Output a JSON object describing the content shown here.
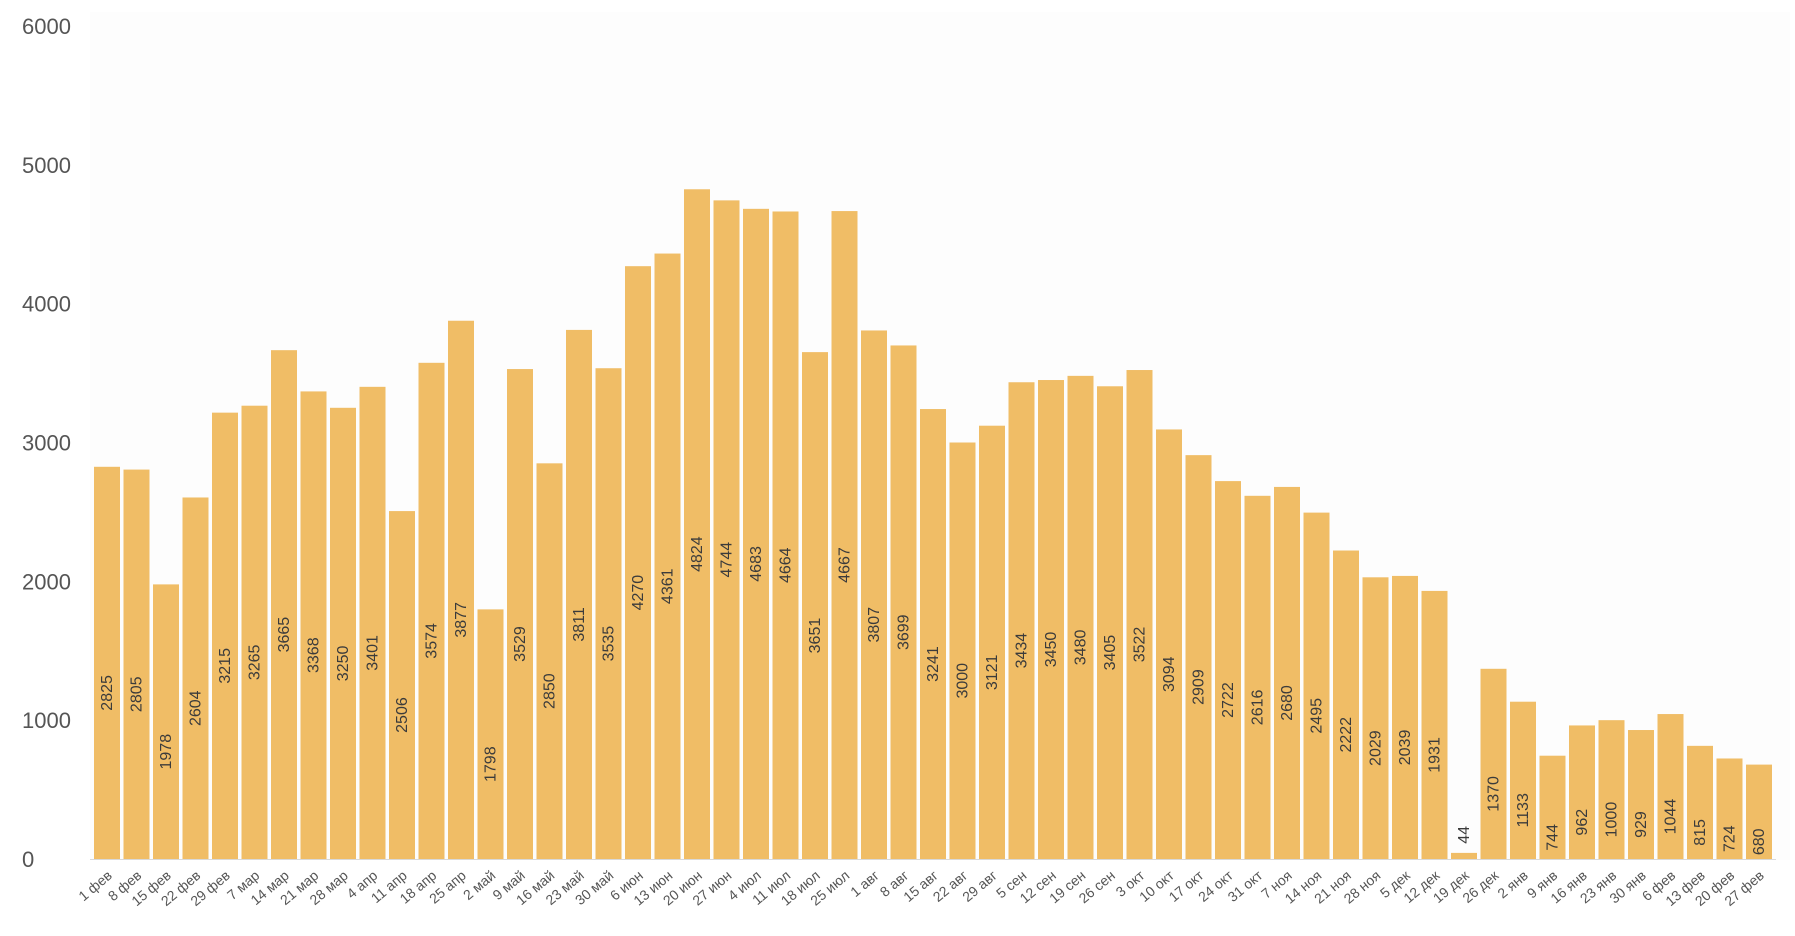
{
  "colors": {
    "bar": "#f0bd66",
    "axis": "#d9d9d9",
    "tick_text": "#555555",
    "label_text": "#3b3b3b"
  },
  "chart_data": {
    "type": "bar",
    "title": "",
    "xlabel": "",
    "ylabel": "",
    "ylim": [
      0,
      6000
    ],
    "yticks": [
      0,
      1000,
      2000,
      3000,
      4000,
      5000,
      6000
    ],
    "grid": false,
    "legend": "none",
    "categories": [
      "1 фев",
      "8 фев",
      "15 фев",
      "22 фев",
      "29 фев",
      "7 мар",
      "14 мар",
      "21 мар",
      "28 мар",
      "4 апр",
      "11 апр",
      "18 апр",
      "25 апр",
      "2 май",
      "9 май",
      "16 май",
      "23 май",
      "30 май",
      "6 июн",
      "13 июн",
      "20 июн",
      "27 июн",
      "4 июл",
      "11 июл",
      "18 июл",
      "25 июл",
      "1 авг",
      "8 авг",
      "15 авг",
      "22 авг",
      "29 авг",
      "5 сен",
      "12 сен",
      "19 сен",
      "26 сен",
      "3 окт",
      "10 окт",
      "17 окт",
      "24 окт",
      "31 окт",
      "7 ноя",
      "14 ноя",
      "21 ноя",
      "28 ноя",
      "5 дек",
      "12 дек",
      "19 дек",
      "26 дек",
      "2 янв",
      "9 янв",
      "16 янв",
      "23 янв",
      "30 янв",
      "6 фев",
      "13 фев",
      "20 фев",
      "27 фев"
    ],
    "values": [
      2825,
      2805,
      1978,
      2604,
      3215,
      3265,
      3665,
      3368,
      3250,
      3401,
      2506,
      3574,
      3877,
      1798,
      3529,
      2850,
      3811,
      3535,
      4270,
      4361,
      4824,
      4744,
      4683,
      4664,
      3651,
      4667,
      3807,
      3699,
      3241,
      3000,
      3121,
      3434,
      3450,
      3480,
      3405,
      3522,
      3094,
      2909,
      2722,
      2616,
      2680,
      2495,
      2222,
      2029,
      2039,
      1931,
      44,
      1370,
      1133,
      744,
      962,
      1000,
      929,
      1044,
      815,
      724,
      680
    ]
  }
}
